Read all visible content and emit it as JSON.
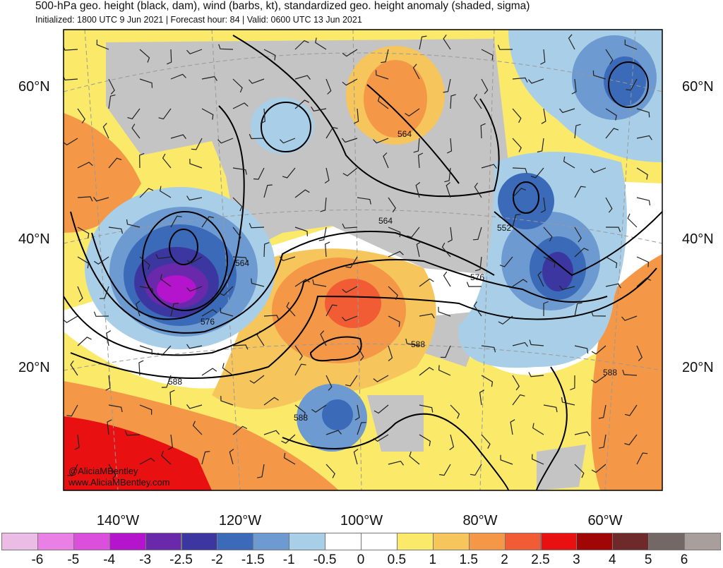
{
  "title": "500-hPa geo. height (black, dam), wind (barbs, kt), standardized geo. height anomaly (shaded, sigma)",
  "subtitle": "Initialized: 1800 UTC 9 Jun 2021 | Forecast hour: 84 | Valid: 0600 UTC 13 Jun 2021",
  "watermark": {
    "handle": "@AliciaMBentley",
    "site": "www.AliciaMBentley.com"
  },
  "lat_labels": [
    "60°N",
    "40°N",
    "20°N"
  ],
  "lon_labels": [
    "140°W",
    "120°W",
    "100°W",
    "80°W",
    "60°W"
  ],
  "contour_labels": [
    "564",
    "564",
    "552",
    "564",
    "576",
    "576",
    "588",
    "588",
    "588",
    "588"
  ],
  "colorbar": {
    "colors": [
      "#ebbde6",
      "#ea80e6",
      "#dc4fdc",
      "#b414cc",
      "#6a28aa",
      "#3c37a0",
      "#3a6ab8",
      "#6d9ad0",
      "#a9cfe8",
      "#ffffff",
      "#ffffff",
      "#fbe96a",
      "#f6c55c",
      "#f49848",
      "#f25c34",
      "#e81010",
      "#a00606",
      "#6e2a2a",
      "#746866",
      "#a89e9c"
    ],
    "labels": [
      "-6",
      "-5",
      "-4",
      "-3",
      "-2.5",
      "-2",
      "-1.5",
      "-1",
      "-0.5",
      "0",
      "0.5",
      "1",
      "1.5",
      "2",
      "2.5",
      "3",
      "4",
      "5",
      "6"
    ]
  }
}
